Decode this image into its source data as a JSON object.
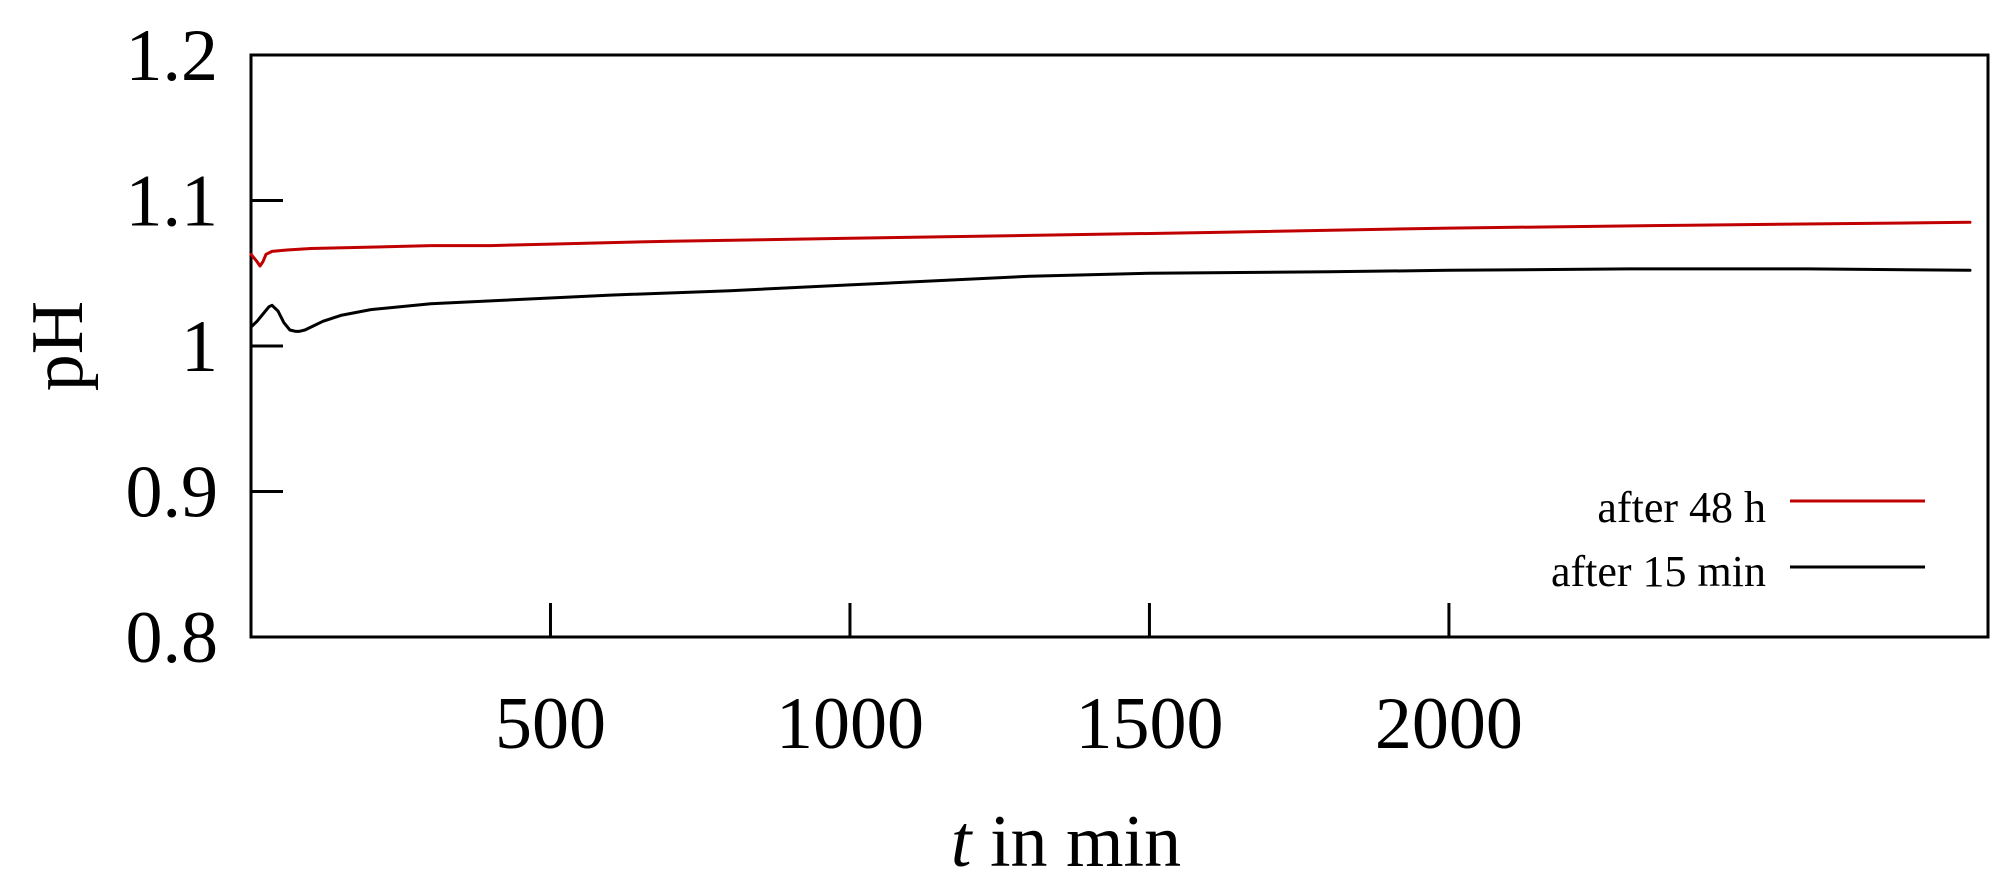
{
  "colors": {
    "after_48h": "#c00000",
    "after_15min": "#000000"
  },
  "chart_data": {
    "type": "line",
    "xlabel": {
      "italic": "t",
      "rest": " in min"
    },
    "ylabel": "pH",
    "xlim": [
      0,
      2900
    ],
    "ylim": [
      0.8,
      1.2
    ],
    "x_ticks": [
      500,
      1000,
      1500,
      2000
    ],
    "x_tick_labels": [
      "500",
      "1000",
      "1500",
      "2000"
    ],
    "y_ticks": [
      0.8,
      0.9,
      1.0,
      1.1,
      1.2
    ],
    "y_tick_labels": [
      "0.8",
      "0.9",
      "1",
      "1.1",
      "1.2"
    ],
    "grid": false,
    "legend": "bottom-right",
    "series": [
      {
        "name": "after 48 h",
        "color": "#c00000",
        "x": [
          0,
          10,
          15,
          20,
          25,
          35,
          60,
          100,
          200,
          300,
          400,
          500,
          700,
          1000,
          1300,
          1600,
          2000,
          2400,
          2870
        ],
        "y": [
          1.063,
          1.058,
          1.055,
          1.058,
          1.063,
          1.065,
          1.066,
          1.067,
          1.068,
          1.069,
          1.069,
          1.07,
          1.072,
          1.074,
          1.076,
          1.078,
          1.081,
          1.083,
          1.085
        ]
      },
      {
        "name": "after 15 min",
        "color": "#000000",
        "x": [
          0,
          10,
          20,
          30,
          35,
          45,
          55,
          65,
          75,
          80,
          90,
          100,
          120,
          150,
          200,
          300,
          400,
          600,
          800,
          1000,
          1300,
          1500,
          1800,
          2000,
          2300,
          2600,
          2870
        ],
        "y": [
          1.013,
          1.017,
          1.022,
          1.027,
          1.028,
          1.024,
          1.016,
          1.011,
          1.01,
          1.01,
          1.011,
          1.013,
          1.017,
          1.021,
          1.025,
          1.029,
          1.031,
          1.035,
          1.038,
          1.042,
          1.048,
          1.05,
          1.051,
          1.052,
          1.053,
          1.053,
          1.052
        ]
      }
    ]
  }
}
